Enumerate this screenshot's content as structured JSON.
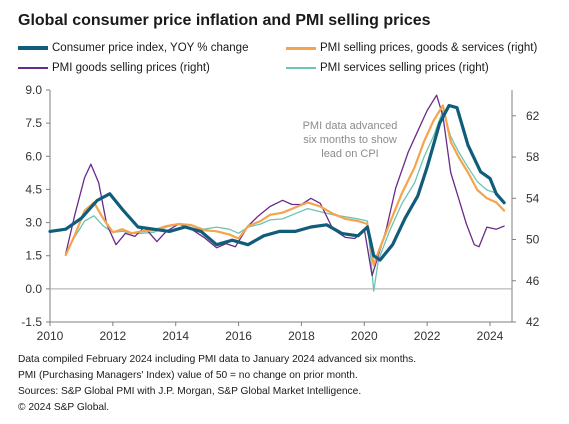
{
  "title": "Global consumer price inflation and PMI selling prices",
  "colors": {
    "cpi": "#0f5d7a",
    "pmi_goods_services": "#f5a34c",
    "pmi_goods": "#6a2a8a",
    "pmi_services": "#6cc4b2",
    "axis": "#7f7f7f",
    "zero_line": "#a6a6a6"
  },
  "notes": [
    "Data compiled February 2024 including PMI data to January 2024 advanced six months.",
    "PMI (Purchasing Managers' Index) value of 50 = no change on prior month.",
    "Sources: S&P Global PMI with J.P. Morgan, S&P Global Market Intelligence.",
    "© 2024 S&P Global."
  ],
  "chart_data": {
    "type": "line",
    "title": "Global consumer price inflation and PMI selling prices",
    "annotation": [
      "PMI data advanced",
      "six months to show",
      "lead on CPI"
    ],
    "xlim": [
      2010,
      2024.7
    ],
    "x_ticks": [
      "2010",
      "2012",
      "2014",
      "2016",
      "2018",
      "2020",
      "2022",
      "2024"
    ],
    "y_left": {
      "lim": [
        -1.5,
        9.0
      ],
      "ticks": [
        "-1.5",
        "0.0",
        "1.5",
        "3.0",
        "4.5",
        "6.0",
        "7.5",
        "9.0"
      ]
    },
    "y_right": {
      "lim": [
        42,
        64.5
      ],
      "ticks": [
        "42",
        "46",
        "50",
        "54",
        "58",
        "62"
      ]
    },
    "legend_placement": "top",
    "series": [
      {
        "name": "Consumer price index, YOY % change",
        "axis": "left",
        "color": "#0f5d7a",
        "points": [
          [
            2010.0,
            2.6
          ],
          [
            2010.5,
            2.7
          ],
          [
            2011.0,
            3.2
          ],
          [
            2011.5,
            4.0
          ],
          [
            2011.9,
            4.3
          ],
          [
            2012.3,
            3.6
          ],
          [
            2012.8,
            2.8
          ],
          [
            2013.3,
            2.7
          ],
          [
            2013.8,
            2.6
          ],
          [
            2014.3,
            2.8
          ],
          [
            2014.8,
            2.6
          ],
          [
            2015.3,
            2.0
          ],
          [
            2015.8,
            2.2
          ],
          [
            2016.3,
            2.0
          ],
          [
            2016.8,
            2.4
          ],
          [
            2017.3,
            2.6
          ],
          [
            2017.8,
            2.6
          ],
          [
            2018.3,
            2.8
          ],
          [
            2018.8,
            2.9
          ],
          [
            2019.3,
            2.5
          ],
          [
            2019.8,
            2.4
          ],
          [
            2020.1,
            2.8
          ],
          [
            2020.3,
            1.5
          ],
          [
            2020.5,
            1.3
          ],
          [
            2020.9,
            2.0
          ],
          [
            2021.3,
            3.2
          ],
          [
            2021.7,
            4.2
          ],
          [
            2022.0,
            5.5
          ],
          [
            2022.4,
            7.5
          ],
          [
            2022.7,
            8.3
          ],
          [
            2022.95,
            8.2
          ],
          [
            2023.3,
            6.5
          ],
          [
            2023.7,
            5.3
          ],
          [
            2024.0,
            5.0
          ],
          [
            2024.2,
            4.3
          ],
          [
            2024.45,
            3.9
          ]
        ]
      },
      {
        "name": "PMI selling prices, goods & services (right)",
        "axis": "right",
        "color": "#f5a34c",
        "points": [
          [
            2010.5,
            48.5
          ],
          [
            2010.8,
            50.5
          ],
          [
            2011.1,
            52.8
          ],
          [
            2011.4,
            53.6
          ],
          [
            2011.7,
            52.0
          ],
          [
            2012.0,
            50.7
          ],
          [
            2012.3,
            51.0
          ],
          [
            2012.6,
            50.6
          ],
          [
            2012.9,
            50.8
          ],
          [
            2013.3,
            50.9
          ],
          [
            2013.7,
            51.3
          ],
          [
            2014.1,
            51.5
          ],
          [
            2014.5,
            51.4
          ],
          [
            2014.9,
            50.9
          ],
          [
            2015.3,
            50.8
          ],
          [
            2015.7,
            50.5
          ],
          [
            2016.0,
            50.1
          ],
          [
            2016.3,
            51.3
          ],
          [
            2016.7,
            51.8
          ],
          [
            2017.0,
            52.4
          ],
          [
            2017.4,
            52.6
          ],
          [
            2017.8,
            53.1
          ],
          [
            2018.2,
            53.6
          ],
          [
            2018.6,
            53.2
          ],
          [
            2019.0,
            52.5
          ],
          [
            2019.4,
            52.0
          ],
          [
            2019.8,
            51.8
          ],
          [
            2020.1,
            51.5
          ],
          [
            2020.3,
            47.5
          ],
          [
            2020.45,
            48.8
          ],
          [
            2020.8,
            51.5
          ],
          [
            2021.2,
            54.5
          ],
          [
            2021.6,
            57.0
          ],
          [
            2021.9,
            59.5
          ],
          [
            2022.2,
            61.5
          ],
          [
            2022.5,
            63.0
          ],
          [
            2022.75,
            59.5
          ],
          [
            2023.0,
            58.0
          ],
          [
            2023.3,
            56.5
          ],
          [
            2023.6,
            54.8
          ],
          [
            2023.9,
            54.0
          ],
          [
            2024.2,
            53.6
          ],
          [
            2024.45,
            52.8
          ]
        ]
      },
      {
        "name": "PMI goods selling prices (right)",
        "axis": "right",
        "color": "#6a2a8a",
        "points": [
          [
            2010.5,
            48.6
          ],
          [
            2010.8,
            52.5
          ],
          [
            2011.1,
            56.0
          ],
          [
            2011.3,
            57.3
          ],
          [
            2011.55,
            55.5
          ],
          [
            2011.8,
            51.5
          ],
          [
            2012.1,
            49.5
          ],
          [
            2012.4,
            50.6
          ],
          [
            2012.7,
            50.3
          ],
          [
            2013.0,
            51.2
          ],
          [
            2013.4,
            49.8
          ],
          [
            2013.7,
            50.8
          ],
          [
            2014.1,
            51.5
          ],
          [
            2014.5,
            51.0
          ],
          [
            2014.9,
            50.2
          ],
          [
            2015.3,
            49.2
          ],
          [
            2015.6,
            49.6
          ],
          [
            2015.9,
            49.3
          ],
          [
            2016.3,
            51.3
          ],
          [
            2016.6,
            52.2
          ],
          [
            2017.0,
            53.2
          ],
          [
            2017.4,
            53.8
          ],
          [
            2017.7,
            53.4
          ],
          [
            2018.0,
            53.4
          ],
          [
            2018.3,
            54.0
          ],
          [
            2018.6,
            53.5
          ],
          [
            2019.0,
            51.0
          ],
          [
            2019.4,
            50.2
          ],
          [
            2019.7,
            50.1
          ],
          [
            2020.0,
            51.0
          ],
          [
            2020.25,
            46.5
          ],
          [
            2020.4,
            48.0
          ],
          [
            2020.7,
            51.0
          ],
          [
            2021.0,
            55.0
          ],
          [
            2021.4,
            58.5
          ],
          [
            2021.7,
            60.5
          ],
          [
            2022.0,
            62.5
          ],
          [
            2022.3,
            64.0
          ],
          [
            2022.5,
            62.0
          ],
          [
            2022.75,
            56.5
          ],
          [
            2023.0,
            54.0
          ],
          [
            2023.25,
            51.5
          ],
          [
            2023.5,
            49.5
          ],
          [
            2023.65,
            49.3
          ],
          [
            2023.9,
            51.2
          ],
          [
            2024.2,
            51.0
          ],
          [
            2024.45,
            51.3
          ]
        ]
      },
      {
        "name": "PMI services selling prices (right)",
        "axis": "right",
        "color": "#6cc4b2",
        "points": [
          [
            2010.5,
            48.7
          ],
          [
            2010.8,
            50.3
          ],
          [
            2011.1,
            51.8
          ],
          [
            2011.4,
            52.3
          ],
          [
            2011.7,
            51.3
          ],
          [
            2012.0,
            50.7
          ],
          [
            2012.3,
            50.8
          ],
          [
            2012.6,
            50.6
          ],
          [
            2012.9,
            50.6
          ],
          [
            2013.3,
            50.7
          ],
          [
            2013.7,
            51.2
          ],
          [
            2014.1,
            51.5
          ],
          [
            2014.5,
            51.4
          ],
          [
            2014.9,
            51.0
          ],
          [
            2015.3,
            51.2
          ],
          [
            2015.7,
            51.0
          ],
          [
            2016.0,
            50.6
          ],
          [
            2016.3,
            51.2
          ],
          [
            2016.7,
            51.5
          ],
          [
            2017.0,
            51.9
          ],
          [
            2017.4,
            52.0
          ],
          [
            2017.8,
            52.5
          ],
          [
            2018.2,
            53.0
          ],
          [
            2018.6,
            52.7
          ],
          [
            2019.0,
            52.4
          ],
          [
            2019.4,
            52.2
          ],
          [
            2019.8,
            52.0
          ],
          [
            2020.1,
            51.8
          ],
          [
            2020.3,
            45.0
          ],
          [
            2020.45,
            48.0
          ],
          [
            2020.8,
            50.8
          ],
          [
            2021.2,
            53.5
          ],
          [
            2021.6,
            55.5
          ],
          [
            2021.9,
            58.0
          ],
          [
            2022.2,
            60.0
          ],
          [
            2022.5,
            62.5
          ],
          [
            2022.75,
            60.0
          ],
          [
            2023.0,
            58.5
          ],
          [
            2023.3,
            57.0
          ],
          [
            2023.6,
            55.6
          ],
          [
            2023.9,
            54.8
          ],
          [
            2024.2,
            54.5
          ],
          [
            2024.45,
            53.6
          ]
        ]
      }
    ]
  }
}
